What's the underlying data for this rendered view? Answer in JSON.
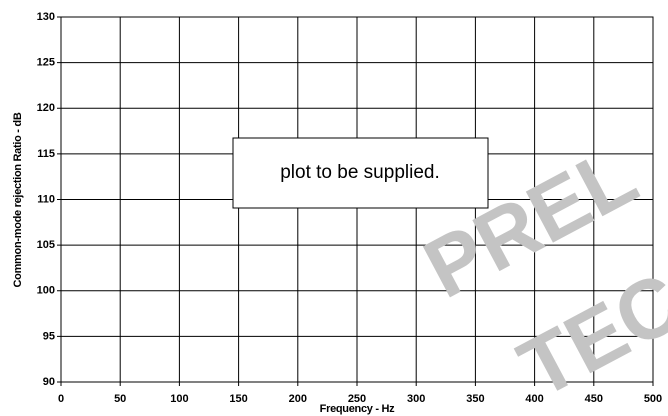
{
  "chart_data": {
    "type": "line",
    "xlabel": "Frequency - Hz",
    "ylabel": "Common-mode rejection Ratio - dB",
    "xlim": [
      0,
      500
    ],
    "xticks": [
      0,
      50,
      100,
      150,
      200,
      250,
      300,
      350,
      400,
      450,
      500
    ],
    "ylim": [
      90,
      130
    ],
    "yticks": [
      90,
      95,
      100,
      105,
      110,
      115,
      120,
      125,
      130
    ],
    "grid": true,
    "annotation": "plot to be supplied.",
    "watermark": [
      "PREL",
      "TEC"
    ]
  }
}
